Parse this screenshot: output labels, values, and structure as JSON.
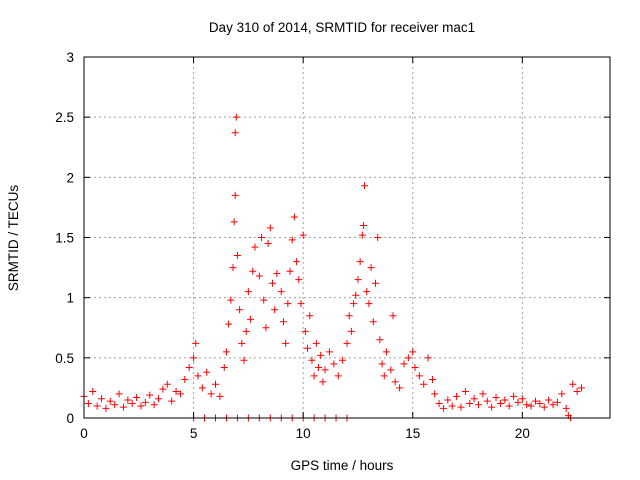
{
  "chart_data": {
    "type": "scatter",
    "title": "Day 310 of 2014, SRMTID for receiver mac1",
    "xlabel": "GPS time / hours",
    "ylabel": "SRMTID / TECUs",
    "xlim": [
      0,
      24
    ],
    "ylim": [
      0,
      3
    ],
    "grid": true,
    "marker": "+",
    "color": "#ff0000",
    "x_ticks": [
      0,
      5,
      10,
      15,
      20
    ],
    "x_tick_labels": [
      "0",
      "5",
      "10",
      "15",
      "20"
    ],
    "y_ticks": [
      0,
      0.5,
      1,
      1.5,
      2,
      2.5,
      3
    ],
    "y_tick_labels": [
      "0",
      "0.5",
      "1",
      "1.5",
      "2",
      "2.5",
      "3"
    ],
    "series": [
      {
        "name": "SRMTID",
        "points": [
          [
            0.0,
            0.18
          ],
          [
            0.2,
            0.12
          ],
          [
            0.4,
            0.22
          ],
          [
            0.6,
            0.1
          ],
          [
            0.8,
            0.16
          ],
          [
            1.0,
            0.08
          ],
          [
            1.2,
            0.14
          ],
          [
            1.4,
            0.11
          ],
          [
            1.6,
            0.2
          ],
          [
            1.8,
            0.09
          ],
          [
            2.0,
            0.15
          ],
          [
            2.2,
            0.12
          ],
          [
            2.4,
            0.17
          ],
          [
            2.6,
            0.1
          ],
          [
            2.8,
            0.13
          ],
          [
            3.0,
            0.19
          ],
          [
            3.2,
            0.11
          ],
          [
            3.4,
            0.16
          ],
          [
            3.6,
            0.24
          ],
          [
            3.8,
            0.28
          ],
          [
            4.0,
            0.14
          ],
          [
            4.2,
            0.22
          ],
          [
            4.4,
            0.2
          ],
          [
            4.6,
            0.32
          ],
          [
            4.8,
            0.42
          ],
          [
            5.0,
            0.5
          ],
          [
            5.1,
            0.62
          ],
          [
            5.2,
            0.35
          ],
          [
            5.4,
            0.25
          ],
          [
            5.6,
            0.38
          ],
          [
            5.8,
            0.2
          ],
          [
            6.0,
            0.28
          ],
          [
            6.2,
            0.18
          ],
          [
            6.4,
            0.42
          ],
          [
            6.5,
            0.55
          ],
          [
            6.6,
            0.78
          ],
          [
            6.7,
            0.98
          ],
          [
            6.8,
            1.25
          ],
          [
            6.85,
            1.63
          ],
          [
            6.9,
            1.85
          ],
          [
            6.9,
            2.37
          ],
          [
            6.95,
            2.5
          ],
          [
            7.0,
            1.35
          ],
          [
            7.1,
            0.9
          ],
          [
            7.2,
            0.62
          ],
          [
            7.3,
            0.48
          ],
          [
            7.4,
            0.72
          ],
          [
            7.5,
            1.05
          ],
          [
            7.6,
            0.82
          ],
          [
            7.7,
            1.22
          ],
          [
            7.8,
            1.42
          ],
          [
            8.0,
            1.18
          ],
          [
            8.1,
            1.5
          ],
          [
            8.2,
            0.98
          ],
          [
            8.3,
            0.75
          ],
          [
            8.4,
            1.45
          ],
          [
            8.5,
            1.58
          ],
          [
            8.6,
            1.12
          ],
          [
            8.7,
            0.9
          ],
          [
            8.8,
            1.2
          ],
          [
            9.0,
            1.05
          ],
          [
            9.1,
            0.8
          ],
          [
            9.2,
            0.62
          ],
          [
            9.3,
            0.95
          ],
          [
            9.4,
            1.22
          ],
          [
            9.5,
            1.48
          ],
          [
            9.6,
            1.67
          ],
          [
            9.7,
            1.3
          ],
          [
            9.8,
            1.15
          ],
          [
            9.9,
            0.95
          ],
          [
            10.0,
            1.52
          ],
          [
            10.1,
            0.72
          ],
          [
            10.2,
            0.58
          ],
          [
            10.3,
            0.85
          ],
          [
            10.4,
            0.48
          ],
          [
            10.5,
            0.35
          ],
          [
            10.6,
            0.62
          ],
          [
            10.7,
            0.42
          ],
          [
            10.8,
            0.52
          ],
          [
            10.9,
            0.3
          ],
          [
            11.0,
            0.4
          ],
          [
            11.2,
            0.55
          ],
          [
            11.4,
            0.45
          ],
          [
            11.6,
            0.35
          ],
          [
            11.8,
            0.48
          ],
          [
            12.0,
            0.62
          ],
          [
            12.1,
            0.85
          ],
          [
            12.2,
            0.72
          ],
          [
            12.3,
            0.95
          ],
          [
            12.4,
            1.02
          ],
          [
            12.5,
            1.15
          ],
          [
            12.6,
            1.3
          ],
          [
            12.7,
            1.52
          ],
          [
            12.75,
            1.6
          ],
          [
            12.8,
            1.93
          ],
          [
            12.9,
            1.05
          ],
          [
            13.0,
            0.95
          ],
          [
            13.1,
            1.25
          ],
          [
            13.2,
            0.8
          ],
          [
            13.3,
            1.12
          ],
          [
            13.4,
            1.5
          ],
          [
            13.5,
            0.65
          ],
          [
            13.6,
            0.45
          ],
          [
            13.7,
            0.35
          ],
          [
            13.8,
            0.55
          ],
          [
            14.0,
            0.4
          ],
          [
            14.1,
            0.85
          ],
          [
            14.2,
            0.3
          ],
          [
            14.4,
            0.25
          ],
          [
            14.6,
            0.45
          ],
          [
            14.8,
            0.5
          ],
          [
            15.0,
            0.55
          ],
          [
            15.1,
            0.42
          ],
          [
            15.3,
            0.35
          ],
          [
            15.5,
            0.28
          ],
          [
            15.7,
            0.5
          ],
          [
            15.9,
            0.32
          ],
          [
            16.0,
            0.2
          ],
          [
            16.2,
            0.12
          ],
          [
            16.4,
            0.08
          ],
          [
            16.6,
            0.15
          ],
          [
            16.8,
            0.1
          ],
          [
            17.0,
            0.18
          ],
          [
            17.2,
            0.09
          ],
          [
            17.4,
            0.22
          ],
          [
            17.6,
            0.12
          ],
          [
            17.8,
            0.16
          ],
          [
            18.0,
            0.11
          ],
          [
            18.2,
            0.2
          ],
          [
            18.4,
            0.14
          ],
          [
            18.6,
            0.09
          ],
          [
            18.8,
            0.17
          ],
          [
            19.0,
            0.12
          ],
          [
            19.2,
            0.15
          ],
          [
            19.4,
            0.1
          ],
          [
            19.6,
            0.18
          ],
          [
            19.8,
            0.13
          ],
          [
            20.0,
            0.16
          ],
          [
            20.2,
            0.11
          ],
          [
            20.4,
            0.1
          ],
          [
            20.6,
            0.14
          ],
          [
            20.8,
            0.12
          ],
          [
            21.0,
            0.09
          ],
          [
            21.2,
            0.15
          ],
          [
            21.4,
            0.11
          ],
          [
            21.6,
            0.13
          ],
          [
            21.8,
            0.2
          ],
          [
            22.0,
            0.08
          ],
          [
            22.1,
            0.02
          ],
          [
            22.3,
            0.28
          ],
          [
            22.5,
            0.22
          ],
          [
            22.7,
            0.25
          ],
          [
            5.0,
            0.0
          ],
          [
            5.5,
            0.0
          ],
          [
            6.0,
            0.0
          ],
          [
            6.5,
            0.0
          ],
          [
            7.0,
            0.0
          ],
          [
            7.5,
            0.0
          ],
          [
            8.0,
            0.0
          ],
          [
            8.5,
            0.0
          ],
          [
            9.0,
            0.0
          ],
          [
            9.5,
            0.0
          ],
          [
            10.0,
            0.0
          ],
          [
            10.5,
            0.0
          ],
          [
            11.0,
            0.0
          ],
          [
            11.5,
            0.0
          ],
          [
            12.0,
            0.0
          ],
          [
            22.2,
            0.0
          ]
        ]
      }
    ]
  }
}
